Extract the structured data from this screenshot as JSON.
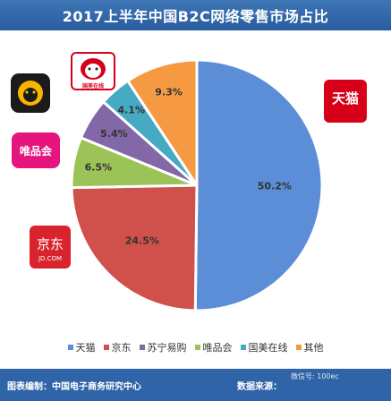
{
  "title": "2017上半年中国B2C网络零售市场占比",
  "chart_data": {
    "type": "pie",
    "title": "2017上半年中国B2C网络零售市场占比",
    "legend_position": "bottom",
    "slices": [
      {
        "name": "天猫",
        "value": 50.2,
        "label": "50.2%",
        "color": "#5b8ed6"
      },
      {
        "name": "京东",
        "value": 24.5,
        "label": "24.5%",
        "color": "#d0504c"
      },
      {
        "name": "唯品会",
        "value": 6.5,
        "label": "6.5%",
        "color": "#9cc357"
      },
      {
        "name": "苏宁易购",
        "value": 5.4,
        "label": "5.4%",
        "color": "#8268a6"
      },
      {
        "name": "国美在线",
        "value": 4.1,
        "label": "4.1%",
        "color": "#46aac5"
      },
      {
        "name": "其他",
        "value": 9.3,
        "label": "9.3%",
        "color": "#f59a42"
      }
    ]
  },
  "legend": [
    {
      "label": "天猫",
      "color": "#5b8ed6"
    },
    {
      "label": "京东",
      "color": "#d0504c"
    },
    {
      "label": "苏宁易购",
      "color": "#8268a6"
    },
    {
      "label": "唯品会",
      "color": "#9cc357"
    },
    {
      "label": "国美在线",
      "color": "#46aac5"
    },
    {
      "label": "其他",
      "color": "#f59a42"
    }
  ],
  "logos": {
    "tmall": "天猫",
    "jd": "京东",
    "jd_sub": "JD.COM",
    "vip": "唯品会",
    "gome_sub": "国美在线"
  },
  "footer": {
    "left": "图表编制：中国电子商务研究中心",
    "right": "数据来源：",
    "watermark": "微信号: 100ec"
  }
}
